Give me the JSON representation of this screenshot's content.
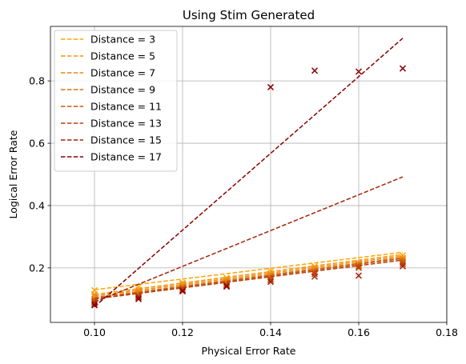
{
  "chart_data": {
    "type": "scatter",
    "title": "Using Stim Generated",
    "xlabel": "Physical Error Rate",
    "ylabel": "Logical Error Rate",
    "xlim": [
      0.09,
      0.18
    ],
    "ylim": [
      0.025,
      0.975
    ],
    "xticks": [
      0.1,
      0.12,
      0.14,
      0.16,
      0.18
    ],
    "xtick_labels": [
      "0.10",
      "0.12",
      "0.14",
      "0.16",
      "0.18"
    ],
    "yticks": [
      0.2,
      0.4,
      0.6,
      0.8
    ],
    "ytick_labels": [
      "0.2",
      "0.4",
      "0.6",
      "0.8"
    ],
    "grid": true,
    "legend_position": "top-left",
    "x": [
      0.1,
      0.11,
      0.12,
      0.13,
      0.14,
      0.15,
      0.16,
      0.17
    ],
    "series": [
      {
        "name": "Distance = 3",
        "color": "#ffa500",
        "marker": "x",
        "values": [
          0.128,
          0.139,
          0.152,
          0.168,
          0.19,
          0.205,
          0.215,
          0.24
        ],
        "fit": [
          0.13,
          0.25
        ]
      },
      {
        "name": "Distance = 5",
        "color": "#f5960a",
        "marker": "x",
        "values": [
          0.115,
          0.13,
          0.148,
          0.162,
          0.182,
          0.2,
          0.212,
          0.232
        ],
        "fit": [
          0.115,
          0.243
        ]
      },
      {
        "name": "Distance = 7",
        "color": "#eb870f",
        "marker": "x",
        "values": [
          0.108,
          0.125,
          0.142,
          0.158,
          0.176,
          0.195,
          0.215,
          0.228
        ],
        "fit": [
          0.11,
          0.238
        ]
      },
      {
        "name": "Distance = 9",
        "color": "#de7010",
        "marker": "x",
        "values": [
          0.1,
          0.118,
          0.138,
          0.152,
          0.17,
          0.188,
          0.208,
          0.222
        ],
        "fit": [
          0.105,
          0.233
        ]
      },
      {
        "name": "Distance = 11",
        "color": "#cc5810",
        "marker": "x",
        "values": [
          0.095,
          0.112,
          0.135,
          0.148,
          0.165,
          0.185,
          0.205,
          0.218
        ],
        "fit": [
          0.102,
          0.23
        ]
      },
      {
        "name": "Distance = 13",
        "color": "#b8400c",
        "marker": "x",
        "values": [
          0.09,
          0.108,
          0.13,
          0.145,
          0.16,
          0.18,
          0.2,
          0.212
        ],
        "fit": [
          0.1,
          0.225
        ]
      },
      {
        "name": "Distance = 15",
        "color": "#a52508",
        "marker": "x",
        "values": [
          0.085,
          0.105,
          0.128,
          0.142,
          0.155,
          0.172,
          0.175,
          0.205
        ],
        "fit": [
          0.09,
          0.492
        ]
      },
      {
        "name": "Distance = 17",
        "color": "#8b0000",
        "marker": "x",
        "values": [
          0.08,
          0.1,
          0.125,
          0.14,
          0.78,
          0.833,
          0.83,
          0.84
        ],
        "fit": [
          0.075,
          0.937
        ]
      }
    ]
  }
}
